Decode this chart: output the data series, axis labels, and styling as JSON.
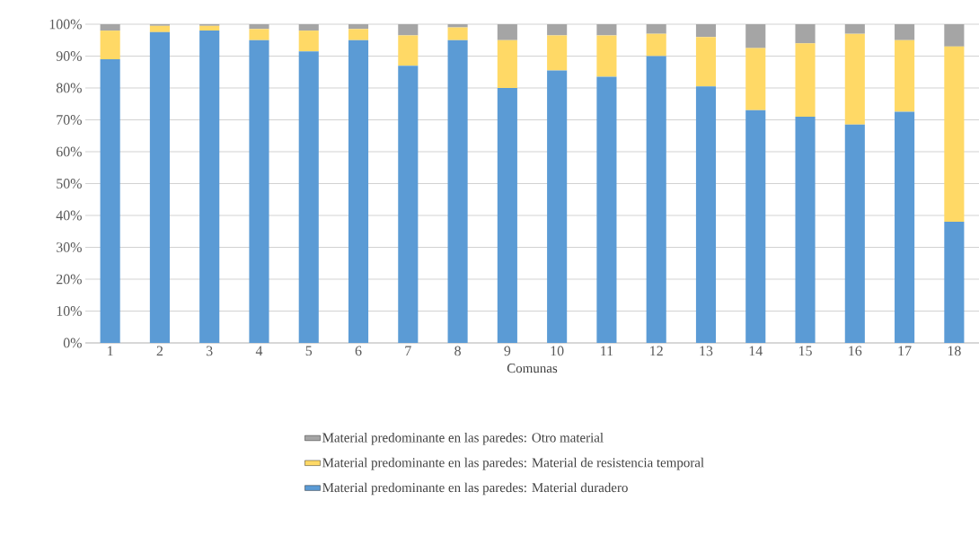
{
  "chart_data": {
    "type": "bar",
    "stacked": true,
    "xlabel": "Comunas",
    "categories": [
      "1",
      "2",
      "3",
      "4",
      "5",
      "6",
      "7",
      "8",
      "9",
      "10",
      "11",
      "12",
      "13",
      "14",
      "15",
      "16",
      "17",
      "18"
    ],
    "series": [
      {
        "name": "Material predominante en las paredes: Material duradero",
        "color": "#5b9bd5",
        "values": [
          89,
          97.5,
          98,
          95,
          91.5,
          95,
          87,
          95,
          80,
          85.5,
          83.5,
          90,
          80.5,
          73,
          71,
          68.5,
          72.5,
          38
        ]
      },
      {
        "name": "Material predominante en las paredes: Material de resistencia temporal",
        "color": "#ffd966",
        "values": [
          9,
          2,
          1.5,
          3.5,
          6.5,
          3.5,
          9.5,
          4,
          15,
          11,
          13,
          7,
          15.5,
          19.5,
          23,
          28.5,
          22.5,
          55
        ]
      },
      {
        "name": "Material predominante en las paredes: Otro material",
        "color": "#a5a5a5",
        "values": [
          2,
          0.5,
          0.5,
          1.5,
          2,
          1.5,
          3.5,
          1,
          5,
          3.5,
          3.5,
          3,
          4,
          7.5,
          6,
          3,
          5,
          7
        ]
      }
    ],
    "ylim": [
      0,
      100
    ],
    "yticks": [
      {
        "value": 0,
        "label": "0%"
      },
      {
        "value": 10,
        "label": "10%"
      },
      {
        "value": 20,
        "label": "20%"
      },
      {
        "value": 30,
        "label": "30%"
      },
      {
        "value": 40,
        "label": "40%"
      },
      {
        "value": 50,
        "label": "50%"
      },
      {
        "value": 60,
        "label": "60%"
      },
      {
        "value": 70,
        "label": "70%"
      },
      {
        "value": 80,
        "label": "80%"
      },
      {
        "value": 90,
        "label": "90%"
      },
      {
        "value": 100,
        "label": "100%"
      }
    ],
    "grid": "y",
    "legend": "bottom"
  }
}
